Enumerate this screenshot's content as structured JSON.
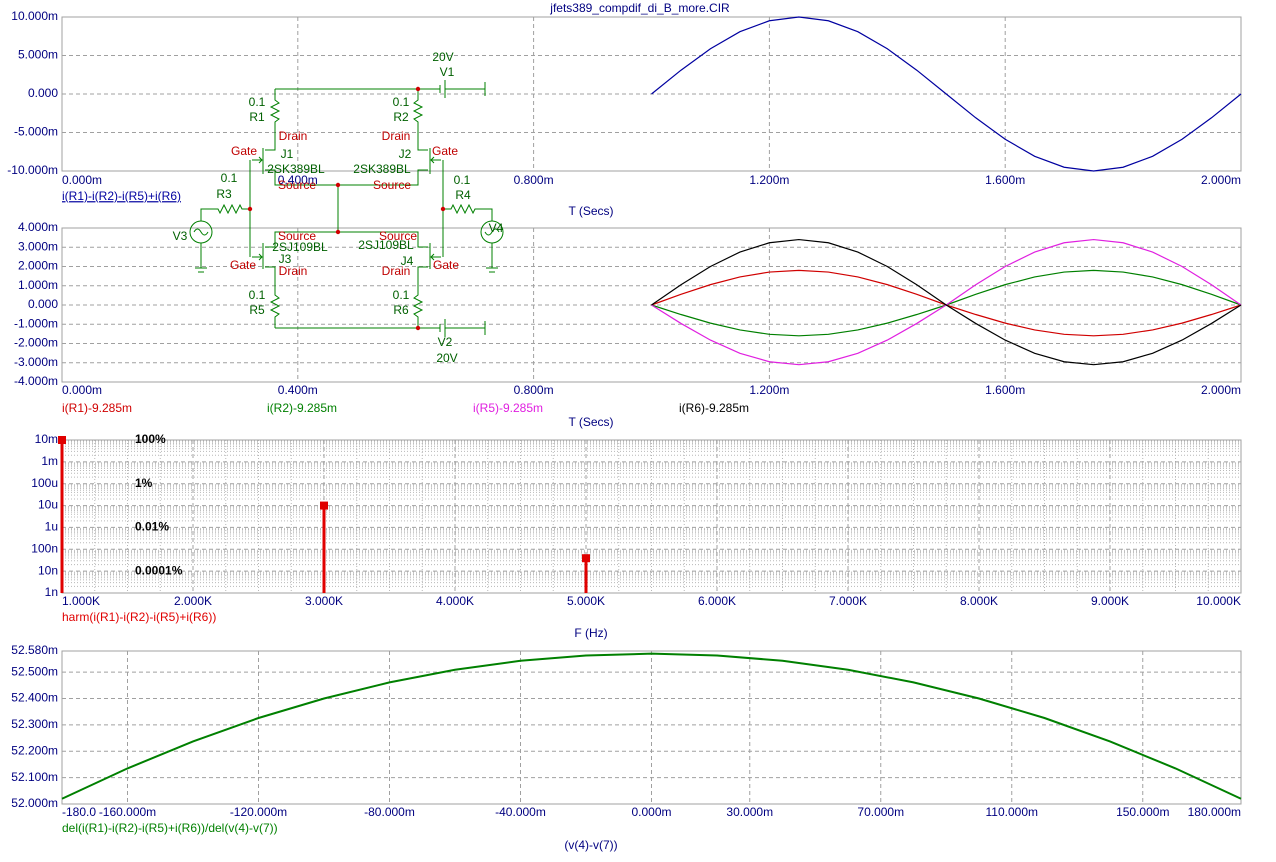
{
  "chart_data": [
    {
      "type": "line",
      "title": "jfets389_compdif_di_B_more.CIR",
      "x_label": "T (Secs)",
      "xlim": [
        0,
        0.002
      ],
      "xticks": [
        {
          "value": 0,
          "label": "0.000m"
        },
        {
          "value": 0.0004,
          "label": "0.400m"
        },
        {
          "value": 0.0008,
          "label": "0.800m"
        },
        {
          "value": 0.0012,
          "label": "1.200m"
        },
        {
          "value": 0.0016,
          "label": "1.600m"
        },
        {
          "value": 0.002,
          "label": "2.000m"
        }
      ],
      "ylim": [
        -0.01,
        0.01
      ],
      "yticks": [
        {
          "value": 0.01,
          "label": "10.000m"
        },
        {
          "value": 0.005,
          "label": "5.000m"
        },
        {
          "value": 0,
          "label": "0.000"
        },
        {
          "value": -0.005,
          "label": "-5.000m"
        },
        {
          "value": -0.01,
          "label": "-10.000m"
        }
      ],
      "grid": true,
      "x": [
        0.001,
        0.00105,
        0.0011,
        0.00115,
        0.0012,
        0.00125,
        0.0013,
        0.00135,
        0.0014,
        0.00145,
        0.0015,
        0.00155,
        0.0016,
        0.00165,
        0.0017,
        0.00175,
        0.0018,
        0.00185,
        0.0019,
        0.00195,
        0.002
      ],
      "series": [
        {
          "name": "i(R1)-i(R2)-i(R5)+i(R6)",
          "color": "#0000a0",
          "values": [
            0,
            0.00309,
            0.00588,
            0.00809,
            0.00951,
            0.01,
            0.00951,
            0.00809,
            0.00588,
            0.00309,
            0,
            -0.00309,
            -0.00588,
            -0.00809,
            -0.00951,
            -0.01,
            -0.00951,
            -0.00809,
            -0.00588,
            -0.00309,
            0
          ]
        }
      ]
    },
    {
      "type": "line",
      "x_label": "T (Secs)",
      "xlim": [
        0,
        0.002
      ],
      "xticks": [
        {
          "value": 0,
          "label": "0.000m"
        },
        {
          "value": 0.0004,
          "label": "0.400m"
        },
        {
          "value": 0.0008,
          "label": "0.800m"
        },
        {
          "value": 0.0012,
          "label": "1.200m"
        },
        {
          "value": 0.0016,
          "label": "1.600m"
        },
        {
          "value": 0.002,
          "label": "2.000m"
        }
      ],
      "ylim": [
        -0.004,
        0.004
      ],
      "yticks": [
        {
          "value": 0.004,
          "label": "4.000m"
        },
        {
          "value": 0.003,
          "label": "3.000m"
        },
        {
          "value": 0.002,
          "label": "2.000m"
        },
        {
          "value": 0.001,
          "label": "1.000m"
        },
        {
          "value": 0,
          "label": "0.000"
        },
        {
          "value": -0.001,
          "label": "-1.000m"
        },
        {
          "value": -0.002,
          "label": "-2.000m"
        },
        {
          "value": -0.003,
          "label": "-3.000m"
        },
        {
          "value": -0.004,
          "label": "-4.000m"
        }
      ],
      "grid": true,
      "x": [
        0.001,
        0.00105,
        0.0011,
        0.00115,
        0.0012,
        0.00125,
        0.0013,
        0.00135,
        0.0014,
        0.00145,
        0.0015,
        0.00155,
        0.0016,
        0.00165,
        0.0017,
        0.00175,
        0.0018,
        0.00185,
        0.0019,
        0.00195,
        0.002
      ],
      "series": [
        {
          "name": "i(R1)-9.285m",
          "color": "#d00000",
          "values": [
            0,
            0.000556,
            0.001058,
            0.001456,
            0.001712,
            0.0018,
            0.001712,
            0.001456,
            0.001058,
            0.000556,
            0,
            -0.000494,
            -0.000941,
            -0.001294,
            -0.001522,
            -0.0016,
            -0.001522,
            -0.001294,
            -0.000941,
            -0.000494,
            0
          ]
        },
        {
          "name": "i(R2)-9.285m",
          "color": "#008000",
          "values": [
            0,
            -0.000494,
            -0.000941,
            -0.001294,
            -0.001522,
            -0.0016,
            -0.001522,
            -0.001294,
            -0.000941,
            -0.000494,
            0,
            0.000556,
            0.001058,
            0.001456,
            0.001712,
            0.0018,
            0.001712,
            0.001456,
            0.001058,
            0.000556,
            0
          ]
        },
        {
          "name": "i(R5)-9.285m",
          "color": "#e020e0",
          "values": [
            0,
            -0.000958,
            -0.001823,
            -0.002508,
            -0.002948,
            -0.0031,
            -0.002948,
            -0.002508,
            -0.001823,
            -0.000958,
            0,
            0.001051,
            0.001999,
            0.002751,
            0.003233,
            0.0034,
            0.003233,
            0.002751,
            0.001999,
            0.001051,
            0
          ]
        },
        {
          "name": "i(R6)-9.285m",
          "color": "#000000",
          "values": [
            0,
            0.001051,
            0.001999,
            0.002751,
            0.003233,
            0.0034,
            0.003233,
            0.002751,
            0.001999,
            0.001051,
            0,
            -0.000958,
            -0.001823,
            -0.002508,
            -0.002948,
            -0.0031,
            -0.002948,
            -0.002508,
            -0.001823,
            -0.000958,
            0
          ]
        }
      ]
    },
    {
      "type": "bar",
      "x_label": "F (Hz)",
      "y_scale": "log",
      "xlim": [
        1000,
        10000
      ],
      "xticks": [
        {
          "value": 1000,
          "label": "1.000K"
        },
        {
          "value": 2000,
          "label": "2.000K"
        },
        {
          "value": 3000,
          "label": "3.000K"
        },
        {
          "value": 4000,
          "label": "4.000K"
        },
        {
          "value": 5000,
          "label": "5.000K"
        },
        {
          "value": 6000,
          "label": "6.000K"
        },
        {
          "value": 7000,
          "label": "7.000K"
        },
        {
          "value": 8000,
          "label": "8.000K"
        },
        {
          "value": 9000,
          "label": "9.000K"
        },
        {
          "value": 10000,
          "label": "10.000K"
        }
      ],
      "ylim": [
        1e-09,
        0.01
      ],
      "yticks": [
        {
          "value": 0.01,
          "label": "10m"
        },
        {
          "value": 0.001,
          "label": "1m"
        },
        {
          "value": 0.0001,
          "label": "100u"
        },
        {
          "value": 1e-05,
          "label": "10u"
        },
        {
          "value": 1e-06,
          "label": "1u"
        },
        {
          "value": 1e-07,
          "label": "100n"
        },
        {
          "value": 1e-08,
          "label": "10n"
        },
        {
          "value": 1e-09,
          "label": "1n"
        }
      ],
      "percent_labels": [
        {
          "value": 0.01,
          "label": "100%"
        },
        {
          "value": 0.0001,
          "label": "1%"
        },
        {
          "value": 1e-06,
          "label": "0.01%"
        },
        {
          "value": 1e-08,
          "label": "0.0001%"
        }
      ],
      "grid": true,
      "x": [
        1000,
        3000,
        5000
      ],
      "series": [
        {
          "name": "harm(i(R1)-i(R2)-i(R5)+i(R6))",
          "color": "#e00000",
          "values": [
            0.01,
            1e-05,
            3.9e-08
          ]
        }
      ]
    },
    {
      "type": "line",
      "x_label": "(v(4)-v(7))",
      "xlim": [
        -0.18,
        0.18
      ],
      "xticks": [
        {
          "value": -0.18,
          "label": "-180.0"
        },
        {
          "value": -0.16,
          "label": "-160.000m"
        },
        {
          "value": -0.12,
          "label": "-120.000m"
        },
        {
          "value": -0.08,
          "label": "-80.000m"
        },
        {
          "value": -0.04,
          "label": "-40.000m"
        },
        {
          "value": 0,
          "label": "0.000m"
        },
        {
          "value": 0.03,
          "label": "30.000m"
        },
        {
          "value": 0.07,
          "label": "70.000m"
        },
        {
          "value": 0.11,
          "label": "110.000m"
        },
        {
          "value": 0.15,
          "label": "150.000m"
        },
        {
          "value": 0.18,
          "label": "180.000m"
        }
      ],
      "ylim": [
        0.052,
        0.05258
      ],
      "yticks": [
        {
          "value": 0.05258,
          "label": "52.580m"
        },
        {
          "value": 0.0525,
          "label": "52.500m"
        },
        {
          "value": 0.0524,
          "label": "52.400m"
        },
        {
          "value": 0.0523,
          "label": "52.300m"
        },
        {
          "value": 0.0522,
          "label": "52.200m"
        },
        {
          "value": 0.0521,
          "label": "52.100m"
        },
        {
          "value": 0.052,
          "label": "52.000m"
        }
      ],
      "grid": true,
      "x": [
        -0.18,
        -0.16,
        -0.14,
        -0.12,
        -0.1,
        -0.08,
        -0.06,
        -0.04,
        -0.02,
        0,
        0.02,
        0.04,
        0.06,
        0.08,
        0.1,
        0.12,
        0.14,
        0.16,
        0.18
      ],
      "series": [
        {
          "name": "del(i(R1)-i(R2)-i(R5)+i(R6))/del(v(4)-v(7))",
          "color": "#008000",
          "values": [
            0.05202,
            0.052135,
            0.052237,
            0.052326,
            0.0524,
            0.052461,
            0.052509,
            0.052543,
            0.052563,
            0.05257,
            0.052563,
            0.052543,
            0.052509,
            0.052461,
            0.0524,
            0.052326,
            0.052237,
            0.052135,
            0.05202
          ]
        }
      ]
    }
  ],
  "schematic": {
    "labels": [
      "20V",
      "V1",
      "0.1",
      "R1",
      "0.1",
      "R2",
      "Drain",
      "Drain",
      "Gate",
      "J1",
      "2SK389BL",
      "J2",
      "Gate",
      "2SK389BL",
      "Source",
      "Source",
      "0.1",
      "R3",
      "0.1",
      "R4",
      "V3",
      "V4",
      "Source",
      "Source",
      "2SJ109BL",
      "2SJ109BL",
      "J3",
      "J4",
      "Gate",
      "Drain",
      "Drain",
      "Gate",
      "0.1",
      "R5",
      "0.1",
      "R6",
      "V2",
      "20V"
    ]
  }
}
